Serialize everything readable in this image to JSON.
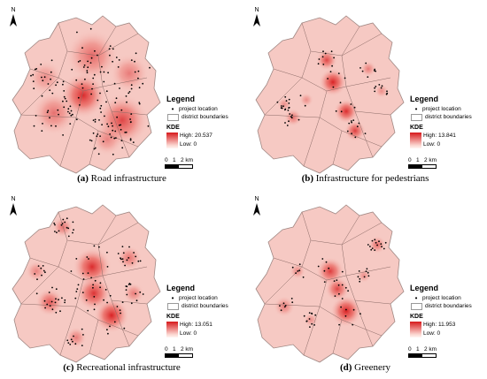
{
  "panels": [
    {
      "id": "a",
      "letter": "(a)",
      "title": "Road infrastructure",
      "kde_high": "High: 20.537",
      "kde_low": "Low: 0",
      "hotspots": "road",
      "points": 160
    },
    {
      "id": "b",
      "letter": "(b)",
      "title": "Infrastructure for pedestrians",
      "kde_high": "High: 13.841",
      "kde_low": "Low: 0",
      "hotspots": "ped",
      "points": 70
    },
    {
      "id": "c",
      "letter": "(c)",
      "title": "Recreational infrastructure",
      "kde_high": "High: 13.051",
      "kde_low": "Low: 0",
      "hotspots": "rec",
      "points": 120
    },
    {
      "id": "d",
      "letter": "(d)",
      "title": "Greenery",
      "kde_high": "High: 11.953",
      "kde_low": "Low: 0",
      "hotspots": "green",
      "points": 70
    }
  ],
  "legend": {
    "title": "Legend",
    "project_location": "project location",
    "district_boundaries": "district boundaries",
    "kde_title": "KDE"
  },
  "north_label": "N",
  "scale": {
    "t0": "0",
    "t1": "1",
    "t2": "2 km"
  },
  "colors": {
    "base": "#f6c9c3",
    "hot": "#d7191c",
    "boundary": "#8a6a66"
  }
}
